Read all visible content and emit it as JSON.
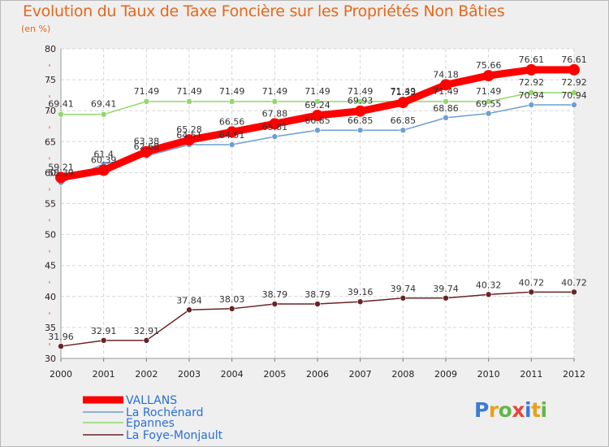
{
  "chart_data": {
    "type": "line",
    "title": "Evolution du Taux de Taxe Foncière sur les Propriétés Non Bâties",
    "ylabel": "(en %)",
    "xlabel": "",
    "x": [
      "2000",
      "2001",
      "2002",
      "2003",
      "2004",
      "2005",
      "2006",
      "2007",
      "2008",
      "2009",
      "2010",
      "2011",
      "2012"
    ],
    "ylim": [
      30,
      80
    ],
    "yticks": [
      30,
      35,
      40,
      45,
      50,
      55,
      60,
      65,
      70,
      75,
      80
    ],
    "grid": true,
    "legend": "bottom-left",
    "series": [
      {
        "name": "VALLANS",
        "color": "#ff0000",
        "values": [
          59.21,
          60.39,
          63.38,
          65.28,
          66.56,
          67.88,
          69.24,
          69.93,
          71.33,
          74.18,
          75.66,
          76.61,
          76.61
        ]
      },
      {
        "name": "La Rochénard",
        "color": "#6d9fd2",
        "values": [
          58.39,
          61.4,
          62.68,
          64.51,
          64.51,
          65.81,
          66.85,
          66.85,
          66.85,
          68.86,
          69.55,
          70.94,
          70.94
        ]
      },
      {
        "name": "Epannes",
        "color": "#90d86a",
        "values": [
          69.41,
          69.41,
          71.49,
          71.49,
          71.49,
          71.49,
          71.49,
          71.49,
          71.49,
          71.49,
          71.49,
          72.92,
          72.92
        ]
      },
      {
        "name": "La Foye-Monjault",
        "color": "#6a2326",
        "values": [
          31.96,
          32.91,
          32.91,
          37.84,
          38.03,
          38.79,
          38.79,
          39.16,
          39.74,
          39.74,
          40.32,
          40.72,
          40.72
        ]
      }
    ],
    "labels": [
      [
        "59.21",
        "60.39",
        "63.38",
        "65.28",
        "66.56",
        "67.88",
        "69.24",
        "69.93",
        "71.33",
        "74.18",
        "75.66",
        "76.61",
        "76.61"
      ],
      [
        "58.39",
        "61.4",
        "62.68",
        "64.51",
        "64.51",
        "65.81",
        "66.85",
        "66.85",
        "66.85",
        "68.86",
        "69.55",
        "70.94",
        "70.94"
      ],
      [
        "69.41",
        "69.41",
        "71.49",
        "71.49",
        "71.49",
        "71.49",
        "71.49",
        "71.49",
        "71.49",
        "71.49",
        "71.49",
        "72.92",
        "72.92"
      ],
      [
        "31.96",
        "32.91",
        "32.91",
        "37.84",
        "38.03",
        "38.79",
        "38.79",
        "39.16",
        "39.74",
        "39.74",
        "40.32",
        "40.72",
        "40.72"
      ]
    ]
  },
  "logo": {
    "text": "Proxiti"
  }
}
